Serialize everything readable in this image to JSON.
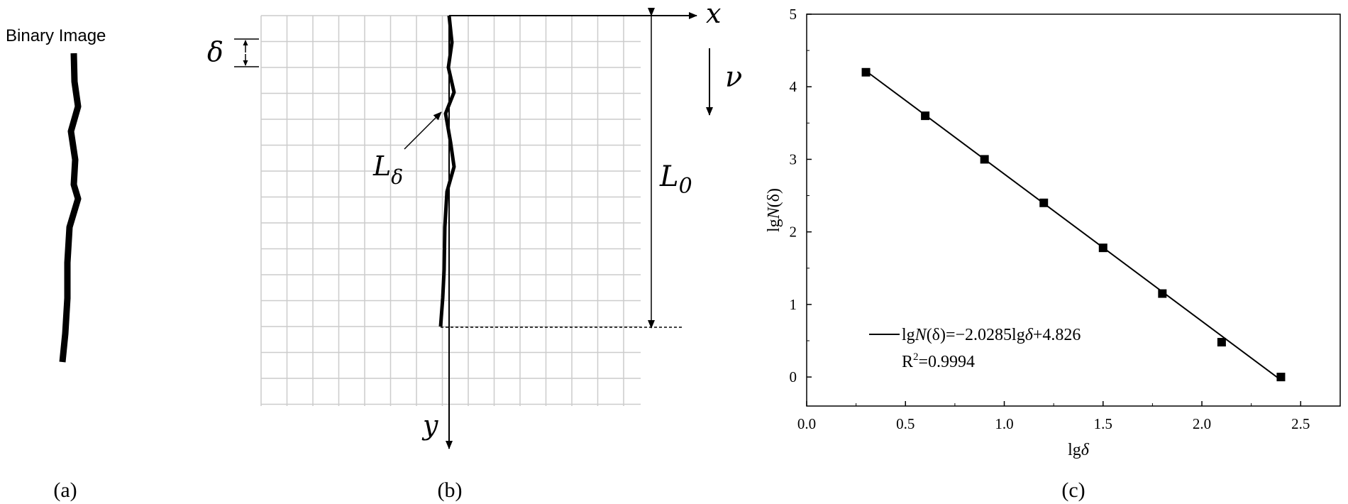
{
  "panel_a": {
    "title": "Binary Image",
    "label": "(a)"
  },
  "panel_b": {
    "label": "(b)",
    "symbol_delta": "δ",
    "symbol_x": "x",
    "symbol_y": "y",
    "symbol_v": "ν",
    "symbol_L": "L",
    "symbol_L_delta_sub": "δ",
    "symbol_L0_sub": "0"
  },
  "panel_c": {
    "label": "(c)",
    "ylabel_prefix": "lg",
    "ylabel_var": "N",
    "ylabel_arg": "(δ)",
    "xlabel_prefix": "lg",
    "xlabel_var": "δ",
    "legend_line1_a": "lg",
    "legend_line1_var": "N",
    "legend_line1_b": "(δ)=−2.0285lg",
    "legend_line1_c": "δ",
    "legend_line1_d": "+4.826",
    "legend_line2_a": "R",
    "legend_line2_sup": "2",
    "legend_line2_b": "=0.9994"
  },
  "chart_data": {
    "type": "scatter",
    "xlim": [
      0.0,
      2.7
    ],
    "ylim": [
      -0.4,
      5
    ],
    "x_ticks": [
      "0.0",
      "0.5",
      "1.0",
      "1.5",
      "2.0",
      "2.5"
    ],
    "x_tick_values": [
      0.0,
      0.5,
      1.0,
      1.5,
      2.0,
      2.5
    ],
    "y_ticks": [
      "0",
      "1",
      "2",
      "3",
      "4",
      "5"
    ],
    "y_tick_values": [
      0,
      1,
      2,
      3,
      4,
      5
    ],
    "grid": false,
    "legend": "bottom-left",
    "series": [
      {
        "x": [
          0.3,
          0.6,
          0.9,
          1.2,
          1.5,
          1.8,
          2.1,
          2.4
        ],
        "y": [
          4.2,
          3.6,
          3.0,
          2.4,
          1.78,
          1.15,
          0.48,
          0.0
        ]
      }
    ],
    "fit_line": {
      "slope": -2.0285,
      "intercept": 4.826,
      "x_range": [
        0.3,
        2.4
      ]
    }
  }
}
